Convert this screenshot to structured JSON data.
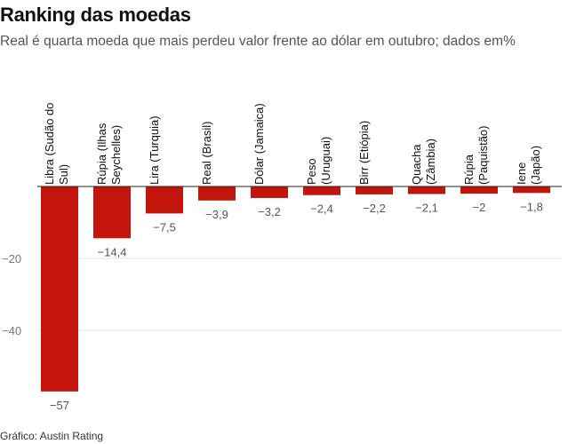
{
  "header": {
    "title": "Ranking das moedas",
    "subtitle": "Real é quarta moeda que mais perdeu valor frente ao dólar em outubro; dados em%"
  },
  "footer": {
    "source": "Gráfico: Austin Rating"
  },
  "colors": {
    "bar": "#c4150c",
    "grid": "#e6e6e6",
    "zero_line": "#222222"
  },
  "chart_data": {
    "type": "bar",
    "orientation": "vertical",
    "title": "Ranking das moedas",
    "subtitle": "Real é quarta moeda que mais perdeu valor frente ao dólar em outubro; dados em%",
    "categories": [
      [
        "Libra (Sudão do",
        "Sul)"
      ],
      [
        "Rúpia (Ilhas",
        "Seychelles)"
      ],
      [
        "Lira (Turquia)"
      ],
      [
        "Real (Brasil)"
      ],
      [
        "Dólar (Jamaica)"
      ],
      [
        "Peso",
        "(Uruguai)"
      ],
      [
        "Birr (Etiópia)"
      ],
      [
        "Quacha",
        "(Zâmbia)"
      ],
      [
        "Rúpia",
        "(Paquistão)"
      ],
      [
        "Iene",
        "(Japão)"
      ]
    ],
    "values": [
      -57,
      -14.4,
      -7.5,
      -3.9,
      -3.2,
      -2.4,
      -2.2,
      -2.1,
      -2,
      -1.8
    ],
    "value_labels": [
      "−57",
      "−14,4",
      "−7,5",
      "−3,9",
      "−3,2",
      "−2,4",
      "−2,2",
      "−2,1",
      "−2",
      "−1,8"
    ],
    "yticks": [
      -20,
      -40
    ],
    "ytick_labels": [
      "−20",
      "−40"
    ],
    "ylim": [
      -57,
      0
    ],
    "grid": true,
    "category_label_orientation": "rotated-vertical",
    "xlabel": "",
    "ylabel": ""
  }
}
